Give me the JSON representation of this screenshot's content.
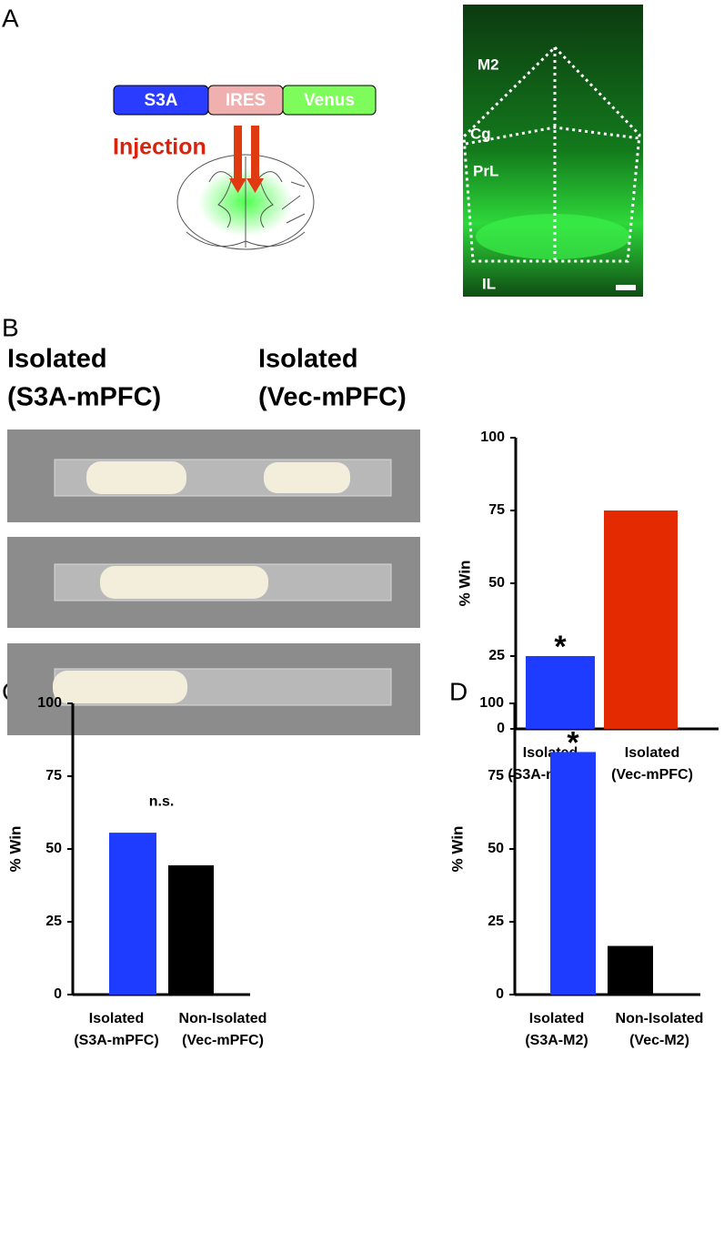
{
  "panel_labels": [
    "A",
    "B",
    "C",
    "D"
  ],
  "schematic": {
    "boxes": [
      "S3A",
      "IRES",
      "Venus"
    ],
    "arrow_label": "Injection"
  },
  "micrograph": {
    "regions": [
      "M2",
      "Cg",
      "PrL",
      "IL"
    ]
  },
  "photo_labels": [
    [
      "Isolated",
      "(S3A-mPFC)"
    ],
    [
      "Isolated",
      "(Vec-mPFC)"
    ]
  ],
  "chart_data": [
    {
      "type": "bar",
      "y_label": "% Win",
      "categories": [
        [
          "Isolated",
          "(S3A-mPFC)"
        ],
        [
          "Isolated",
          "(Vec-mPFC)"
        ]
      ],
      "values": [
        25,
        75
      ],
      "colors": [
        "#1e3cff",
        "#e32a00"
      ],
      "annotations": [
        "*",
        null
      ],
      "ylim": [
        0,
        100
      ],
      "yticks": [
        0,
        25,
        50,
        75,
        100
      ]
    },
    {
      "type": "bar",
      "y_label": "% Win",
      "categories": [
        [
          "Isolated",
          "(S3A-mPFC)"
        ],
        [
          "Non-Isolated",
          "(Vec-mPFC)"
        ]
      ],
      "values": [
        55.6,
        44.4
      ],
      "colors": [
        "#1e3cff",
        "#000000"
      ],
      "note": "n.s.",
      "ylim": [
        0,
        100
      ],
      "yticks": [
        0,
        25,
        50,
        75,
        100
      ]
    },
    {
      "type": "bar",
      "y_label": "% Win",
      "categories": [
        [
          "Isolated",
          "(S3A-M2)"
        ],
        [
          "Non-Isolated",
          "(Vec-M2)"
        ]
      ],
      "values": [
        83.3,
        16.7
      ],
      "colors": [
        "#1e3cff",
        "#000000"
      ],
      "annotations": [
        "*",
        null
      ],
      "ylim": [
        0,
        100
      ],
      "yticks": [
        0,
        25,
        50,
        75,
        100
      ]
    }
  ]
}
